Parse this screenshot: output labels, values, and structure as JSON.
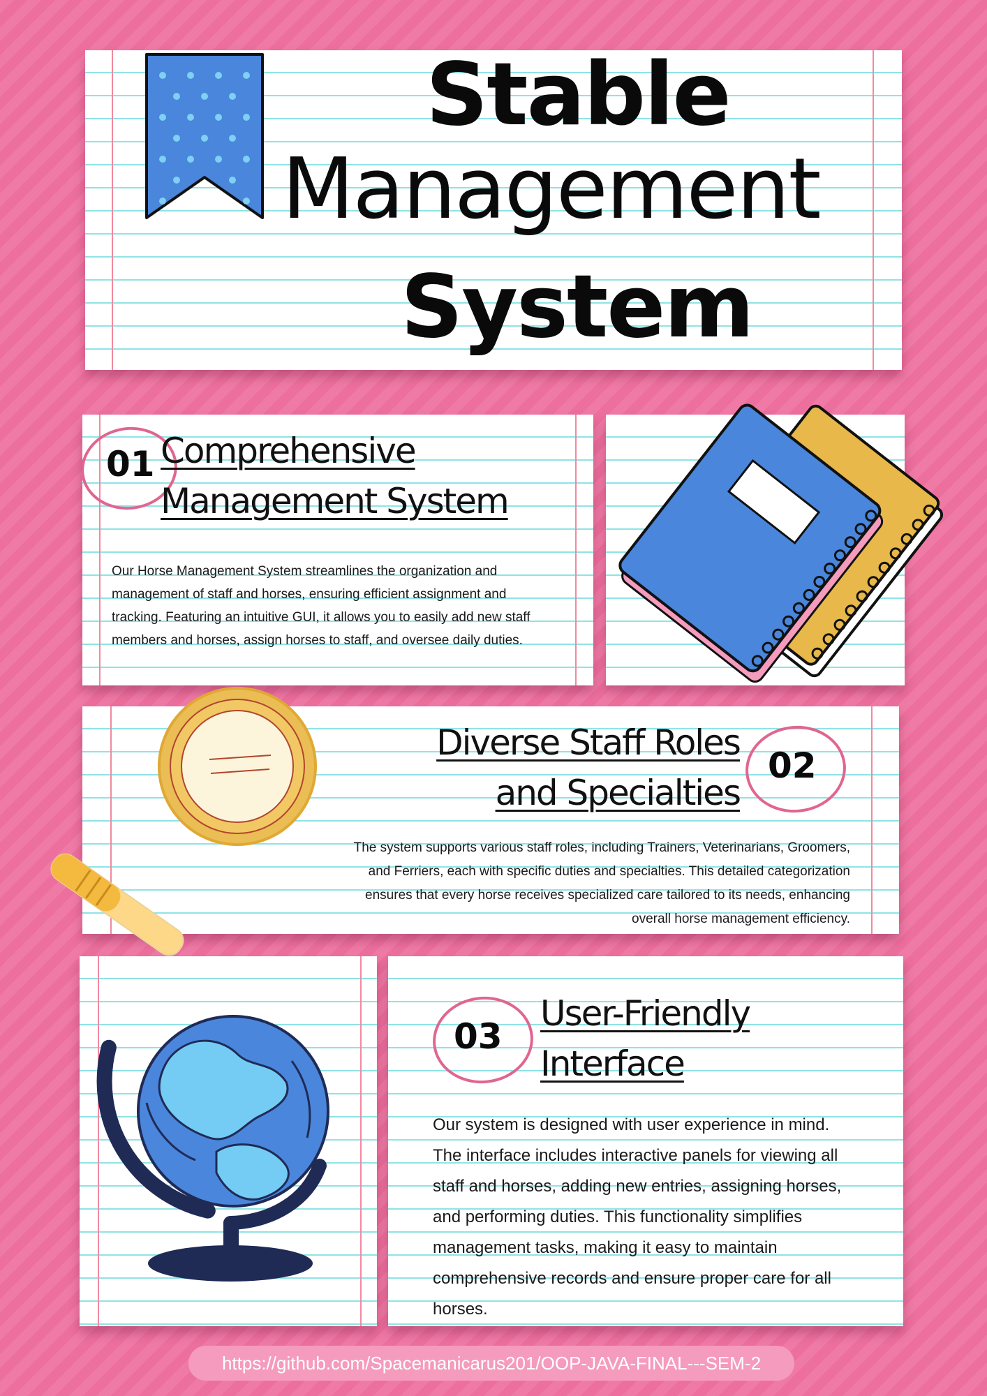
{
  "title": {
    "line1": "Stable",
    "line2": "Management",
    "line3": "System"
  },
  "sections": [
    {
      "number": "01",
      "heading_line1": "Comprehensive",
      "heading_line2": "Management System",
      "body": "Our Horse Management System streamlines the organization and management of staff and horses, ensuring efficient assignment and tracking. Featuring an intuitive GUI, it allows you to easily add new staff members and horses, assign horses to staff, and oversee daily duties."
    },
    {
      "number": "02",
      "heading_line1": "Diverse Staff Roles",
      "heading_line2": "and Specialties",
      "body": "The system supports various staff roles, including Trainers, Veterinarians, Groomers, and Ferriers, each with specific duties and specialties. This detailed categorization ensures that every horse receives specialized care tailored to its needs, enhancing overall horse management efficiency."
    },
    {
      "number": "03",
      "heading_line1": "User-Friendly",
      "heading_line2": "Interface",
      "body": "Our system is designed with user experience in mind. The interface includes interactive panels for viewing all staff and horses, adding new entries, assigning horses, and performing duties. This functionality simplifies management tasks, making it easy to maintain comprehensive records and ensure proper care for all horses."
    }
  ],
  "footer": {
    "link": "https://github.com/Spacemanicarus201/OOP-JAVA-FINAL---SEM-2"
  },
  "icons": [
    "bookmark-icon",
    "notebooks-icon",
    "magnifying-glass-icon",
    "globe-icon"
  ],
  "colors": {
    "background": "#f07aa6",
    "accent_pink": "#e0668f",
    "blue": "#4a86dc",
    "yellow": "#e8b84a"
  }
}
